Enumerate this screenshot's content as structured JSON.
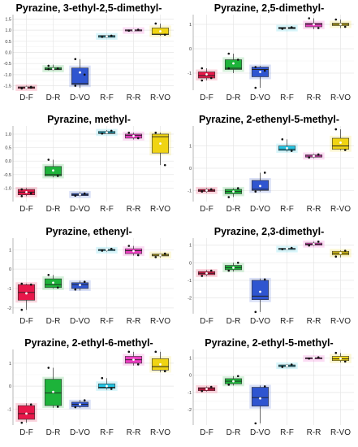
{
  "chart_data": [
    {
      "type": "box",
      "title": "Pyrazine, 3-ethyl-2,5-dimethyl-",
      "categories": [
        "D-F",
        "D-R",
        "D-VO",
        "R-F",
        "R-R",
        "R-VO"
      ],
      "ylim": [
        -1.7,
        1.7
      ],
      "yticks": [
        "-1.5",
        "-1.0",
        "-0.5",
        "0.0",
        "0.5",
        "1.0",
        "1.5"
      ],
      "boxes": [
        {
          "min": -1.65,
          "q1": -1.62,
          "median": -1.58,
          "q3": -1.55,
          "max": -1.5,
          "mean": -1.59,
          "points": [
            -1.6,
            -1.58,
            -1.62,
            -1.55
          ]
        },
        {
          "min": -0.8,
          "q1": -0.78,
          "median": -0.75,
          "q3": -0.68,
          "max": -0.55,
          "mean": -0.74,
          "points": [
            -0.75,
            -0.72,
            -0.6
          ]
        },
        {
          "min": -1.6,
          "q1": -1.45,
          "median": -1.4,
          "q3": -0.7,
          "max": -0.3,
          "mean": -0.9,
          "points": [
            -1.5,
            -1.0,
            -0.3
          ]
        },
        {
          "min": 0.65,
          "q1": 0.68,
          "median": 0.72,
          "q3": 0.76,
          "max": 0.78,
          "mean": 0.72,
          "points": [
            0.7,
            0.75
          ]
        },
        {
          "min": 0.95,
          "q1": 0.98,
          "median": 1.0,
          "q3": 1.02,
          "max": 1.05,
          "mean": 1.0,
          "points": [
            0.98,
            1.02
          ]
        },
        {
          "min": 0.75,
          "q1": 0.8,
          "median": 0.82,
          "q3": 1.1,
          "max": 1.3,
          "mean": 0.95,
          "points": [
            1.3,
            0.8
          ]
        }
      ],
      "colors": [
        "#e8174a",
        "#1db33a",
        "#2f55d0",
        "#22c6e5",
        "#ee3dc4",
        "#f0d412"
      ]
    },
    {
      "type": "box",
      "title": "Pyrazine, 2,5-dimethyl-",
      "categories": [
        "D-F",
        "D-R",
        "D-VO",
        "R-F",
        "R-R",
        "R-VO"
      ],
      "ylim": [
        -1.7,
        1.4
      ],
      "yticks": [
        "-1",
        "0",
        "1"
      ],
      "boxes": [
        {
          "min": -1.3,
          "q1": -1.2,
          "median": -1.1,
          "q3": -0.95,
          "max": -0.8,
          "mean": -1.05,
          "points": [
            -1.3,
            -1.2,
            -0.8
          ]
        },
        {
          "min": -1.0,
          "q1": -0.85,
          "median": -0.8,
          "q3": -0.45,
          "max": -0.2,
          "mean": -0.6,
          "points": [
            -0.8,
            -0.45,
            -0.2
          ]
        },
        {
          "min": -1.6,
          "q1": -1.15,
          "median": -0.85,
          "q3": -0.75,
          "max": -0.7,
          "mean": -0.95,
          "points": [
            -1.6,
            -0.9,
            -0.75
          ]
        },
        {
          "min": 0.8,
          "q1": 0.82,
          "median": 0.85,
          "q3": 0.88,
          "max": 0.9,
          "mean": 0.85,
          "points": [
            0.82,
            0.88
          ]
        },
        {
          "min": 0.8,
          "q1": 0.9,
          "median": 1.0,
          "q3": 1.05,
          "max": 1.25,
          "mean": 1.0,
          "points": [
            1.25,
            0.85
          ]
        },
        {
          "min": 0.85,
          "q1": 0.95,
          "median": 1.0,
          "q3": 1.05,
          "max": 1.2,
          "mean": 1.0,
          "points": [
            1.2,
            0.9
          ]
        }
      ],
      "colors": [
        "#e8174a",
        "#1db33a",
        "#2f55d0",
        "#22c6e5",
        "#ee3dc4",
        "#f0d412"
      ]
    },
    {
      "type": "box",
      "title": "Pyrazine, methyl-",
      "categories": [
        "D-F",
        "D-R",
        "D-VO",
        "R-F",
        "R-R",
        "R-VO"
      ],
      "ylim": [
        -1.5,
        1.3
      ],
      "yticks": [
        "-1.0",
        "-0.5",
        "0.0",
        "0.5",
        "1.0"
      ],
      "boxes": [
        {
          "min": -1.3,
          "q1": -1.25,
          "median": -1.15,
          "q3": -1.05,
          "max": -1.0,
          "mean": -1.15,
          "points": [
            -1.3,
            -1.2,
            -1.05
          ]
        },
        {
          "min": -0.6,
          "q1": -0.55,
          "median": -0.5,
          "q3": -0.2,
          "max": 0.05,
          "mean": -0.35,
          "points": [
            0.05,
            -0.55
          ]
        },
        {
          "min": -1.3,
          "q1": -1.28,
          "median": -1.25,
          "q3": -1.2,
          "max": -1.15,
          "mean": -1.24,
          "points": [
            -1.28,
            -1.2
          ]
        },
        {
          "min": 1.0,
          "q1": 1.02,
          "median": 1.05,
          "q3": 1.1,
          "max": 1.15,
          "mean": 1.06,
          "points": [
            1.02,
            1.12
          ]
        },
        {
          "min": 0.8,
          "q1": 0.85,
          "median": 0.95,
          "q3": 1.0,
          "max": 1.05,
          "mean": 0.93,
          "points": [
            1.05,
            0.85
          ]
        },
        {
          "min": -0.15,
          "q1": 0.3,
          "median": 0.9,
          "q3": 1.0,
          "max": 1.05,
          "mean": 0.65,
          "points": [
            1.05,
            -0.15
          ]
        }
      ],
      "colors": [
        "#e8174a",
        "#1db33a",
        "#2f55d0",
        "#22c6e5",
        "#ee3dc4",
        "#f0d412"
      ]
    },
    {
      "type": "box",
      "title": "Pyrazine, 2-ethenyl-5-methyl-",
      "categories": [
        "D-F",
        "D-R",
        "D-VO",
        "R-F",
        "R-R",
        "R-VO"
      ],
      "ylim": [
        -1.5,
        1.9
      ],
      "yticks": [
        "-1",
        "0",
        "1"
      ],
      "boxes": [
        {
          "min": -1.1,
          "q1": -1.05,
          "median": -1.0,
          "q3": -0.95,
          "max": -0.9,
          "mean": -1.0,
          "points": [
            -1.05,
            -0.95
          ]
        },
        {
          "min": -1.3,
          "q1": -1.15,
          "median": -1.05,
          "q3": -0.95,
          "max": -0.9,
          "mean": -1.05,
          "points": [
            -1.3,
            -0.9
          ]
        },
        {
          "min": -1.05,
          "q1": -1.0,
          "median": -0.95,
          "q3": -0.55,
          "max": -0.2,
          "mean": -0.8,
          "points": [
            -1.05,
            -0.2
          ]
        },
        {
          "min": 0.75,
          "q1": 0.8,
          "median": 0.85,
          "q3": 1.0,
          "max": 1.3,
          "mean": 0.9,
          "points": [
            1.3,
            0.78
          ]
        },
        {
          "min": 0.45,
          "q1": 0.5,
          "median": 0.55,
          "q3": 0.6,
          "max": 0.65,
          "mean": 0.55,
          "points": [
            0.48,
            0.62
          ]
        },
        {
          "min": 0.8,
          "q1": 0.85,
          "median": 1.0,
          "q3": 1.35,
          "max": 1.75,
          "mean": 1.15,
          "points": [
            1.75,
            0.82
          ]
        }
      ],
      "colors": [
        "#e8174a",
        "#1db33a",
        "#2f55d0",
        "#22c6e5",
        "#ee3dc4",
        "#f0d412"
      ]
    },
    {
      "type": "box",
      "title": "Pyrazine, ethenyl-",
      "categories": [
        "D-F",
        "D-R",
        "D-VO",
        "R-F",
        "R-R",
        "R-VO"
      ],
      "ylim": [
        -2.3,
        1.6
      ],
      "yticks": [
        "-2",
        "-1",
        "0",
        "1"
      ],
      "boxes": [
        {
          "min": -2.1,
          "q1": -1.6,
          "median": -1.2,
          "q3": -0.8,
          "max": -0.75,
          "mean": -1.25,
          "points": [
            -2.1,
            -0.8,
            -0.75
          ]
        },
        {
          "min": -1.0,
          "q1": -0.95,
          "median": -0.8,
          "q3": -0.5,
          "max": -0.3,
          "mean": -0.7,
          "points": [
            -0.3,
            -0.95
          ]
        },
        {
          "min": -1.1,
          "q1": -1.0,
          "median": -0.8,
          "q3": -0.7,
          "max": -0.6,
          "mean": -0.82,
          "points": [
            -1.05,
            -0.65
          ]
        },
        {
          "min": 0.9,
          "q1": 0.95,
          "median": 1.0,
          "q3": 1.02,
          "max": 1.05,
          "mean": 1.0,
          "points": [
            0.95,
            1.05
          ]
        },
        {
          "min": 0.7,
          "q1": 0.8,
          "median": 0.95,
          "q3": 1.05,
          "max": 1.2,
          "mean": 0.93,
          "points": [
            1.2,
            0.72
          ]
        },
        {
          "min": 0.6,
          "q1": 0.68,
          "median": 0.72,
          "q3": 0.78,
          "max": 0.8,
          "mean": 0.72,
          "points": [
            0.62,
            0.8
          ]
        }
      ],
      "colors": [
        "#e8174a",
        "#1db33a",
        "#2f55d0",
        "#22c6e5",
        "#ee3dc4",
        "#f0d412"
      ]
    },
    {
      "type": "box",
      "title": "Pyrazine, 2,3-dimethyl-",
      "categories": [
        "D-F",
        "D-R",
        "D-VO",
        "R-F",
        "R-R",
        "R-VO"
      ],
      "ylim": [
        -2.9,
        1.4
      ],
      "yticks": [
        "-2",
        "-1",
        "0",
        "1"
      ],
      "boxes": [
        {
          "min": -0.75,
          "q1": -0.68,
          "median": -0.6,
          "q3": -0.5,
          "max": -0.42,
          "mean": -0.6,
          "points": [
            -0.75,
            -0.45
          ]
        },
        {
          "min": -0.5,
          "q1": -0.4,
          "median": -0.28,
          "q3": -0.15,
          "max": 0.0,
          "mean": -0.28,
          "points": [
            -0.45,
            0.0
          ]
        },
        {
          "min": -2.8,
          "q1": -2.1,
          "median": -1.9,
          "q3": -1.0,
          "max": -0.9,
          "mean": -1.65,
          "points": [
            -2.8,
            -0.95
          ]
        },
        {
          "min": 0.75,
          "q1": 0.78,
          "median": 0.8,
          "q3": 0.82,
          "max": 0.85,
          "mean": 0.8,
          "points": [
            0.77,
            0.84
          ]
        },
        {
          "min": 0.95,
          "q1": 1.0,
          "median": 1.05,
          "q3": 1.12,
          "max": 1.2,
          "mean": 1.06,
          "points": [
            0.98,
            1.2
          ]
        },
        {
          "min": 0.3,
          "q1": 0.45,
          "median": 0.55,
          "q3": 0.65,
          "max": 0.7,
          "mean": 0.55,
          "points": [
            0.35,
            0.68
          ]
        }
      ],
      "colors": [
        "#e8174a",
        "#1db33a",
        "#2f55d0",
        "#22c6e5",
        "#ee3dc4",
        "#f0d412"
      ]
    },
    {
      "type": "box",
      "title": "Pyrazine, 2-ethyl-6-methyl-",
      "categories": [
        "D-F",
        "D-R",
        "D-VO",
        "R-F",
        "R-R",
        "R-VO"
      ],
      "ylim": [
        -1.7,
        1.6
      ],
      "yticks": [
        "-1",
        "0",
        "1"
      ],
      "boxes": [
        {
          "min": -1.6,
          "q1": -1.45,
          "median": -1.2,
          "q3": -0.85,
          "max": -0.75,
          "mean": -1.2,
          "points": [
            -1.6,
            -0.8
          ]
        },
        {
          "min": -0.95,
          "q1": -0.85,
          "median": -0.3,
          "q3": 0.3,
          "max": 0.8,
          "mean": -0.25,
          "points": [
            0.8,
            -0.9
          ]
        },
        {
          "min": -0.95,
          "q1": -0.9,
          "median": -0.8,
          "q3": -0.7,
          "max": -0.6,
          "mean": -0.8,
          "points": [
            -0.92,
            -0.62
          ]
        },
        {
          "min": -0.15,
          "q1": -0.1,
          "median": -0.05,
          "q3": 0.1,
          "max": 0.35,
          "mean": 0.0,
          "points": [
            0.35,
            -0.12
          ]
        },
        {
          "min": 0.9,
          "q1": 1.0,
          "median": 1.15,
          "q3": 1.3,
          "max": 1.5,
          "mean": 1.15,
          "points": [
            1.5,
            0.95
          ]
        },
        {
          "min": 0.6,
          "q1": 0.7,
          "median": 0.85,
          "q3": 1.2,
          "max": 1.5,
          "mean": 0.95,
          "points": [
            1.5,
            0.65
          ]
        }
      ],
      "colors": [
        "#e8174a",
        "#1db33a",
        "#2f55d0",
        "#22c6e5",
        "#ee3dc4",
        "#f0d412"
      ]
    },
    {
      "type": "box",
      "title": "Pyrazine, 2-ethyl-5-methyl-",
      "categories": [
        "D-F",
        "D-R",
        "D-VO",
        "R-F",
        "R-R",
        "R-VO"
      ],
      "ylim": [
        -2.9,
        1.5
      ],
      "yticks": [
        "-2",
        "-1",
        "0",
        "1"
      ],
      "boxes": [
        {
          "min": -0.95,
          "q1": -0.9,
          "median": -0.8,
          "q3": -0.72,
          "max": -0.65,
          "mean": -0.8,
          "points": [
            -0.92,
            -0.68
          ]
        },
        {
          "min": -0.6,
          "q1": -0.5,
          "median": -0.35,
          "q3": -0.2,
          "max": -0.05,
          "mean": -0.35,
          "points": [
            -0.55,
            -0.05
          ]
        },
        {
          "min": -2.8,
          "q1": -1.8,
          "median": -1.3,
          "q3": -0.7,
          "max": -0.6,
          "mean": -1.35,
          "points": [
            -2.8,
            -0.65
          ]
        },
        {
          "min": 0.45,
          "q1": 0.5,
          "median": 0.55,
          "q3": 0.6,
          "max": 0.65,
          "mean": 0.55,
          "points": [
            0.48,
            0.62
          ]
        },
        {
          "min": 0.95,
          "q1": 0.98,
          "median": 1.0,
          "q3": 1.02,
          "max": 1.05,
          "mean": 1.0,
          "points": [
            0.97,
            1.04
          ]
        },
        {
          "min": 0.75,
          "q1": 0.85,
          "median": 0.95,
          "q3": 1.1,
          "max": 1.3,
          "mean": 0.97,
          "points": [
            1.3,
            0.8
          ]
        }
      ],
      "colors": [
        "#e8174a",
        "#1db33a",
        "#2f55d0",
        "#22c6e5",
        "#ee3dc4",
        "#f0d412"
      ]
    }
  ]
}
